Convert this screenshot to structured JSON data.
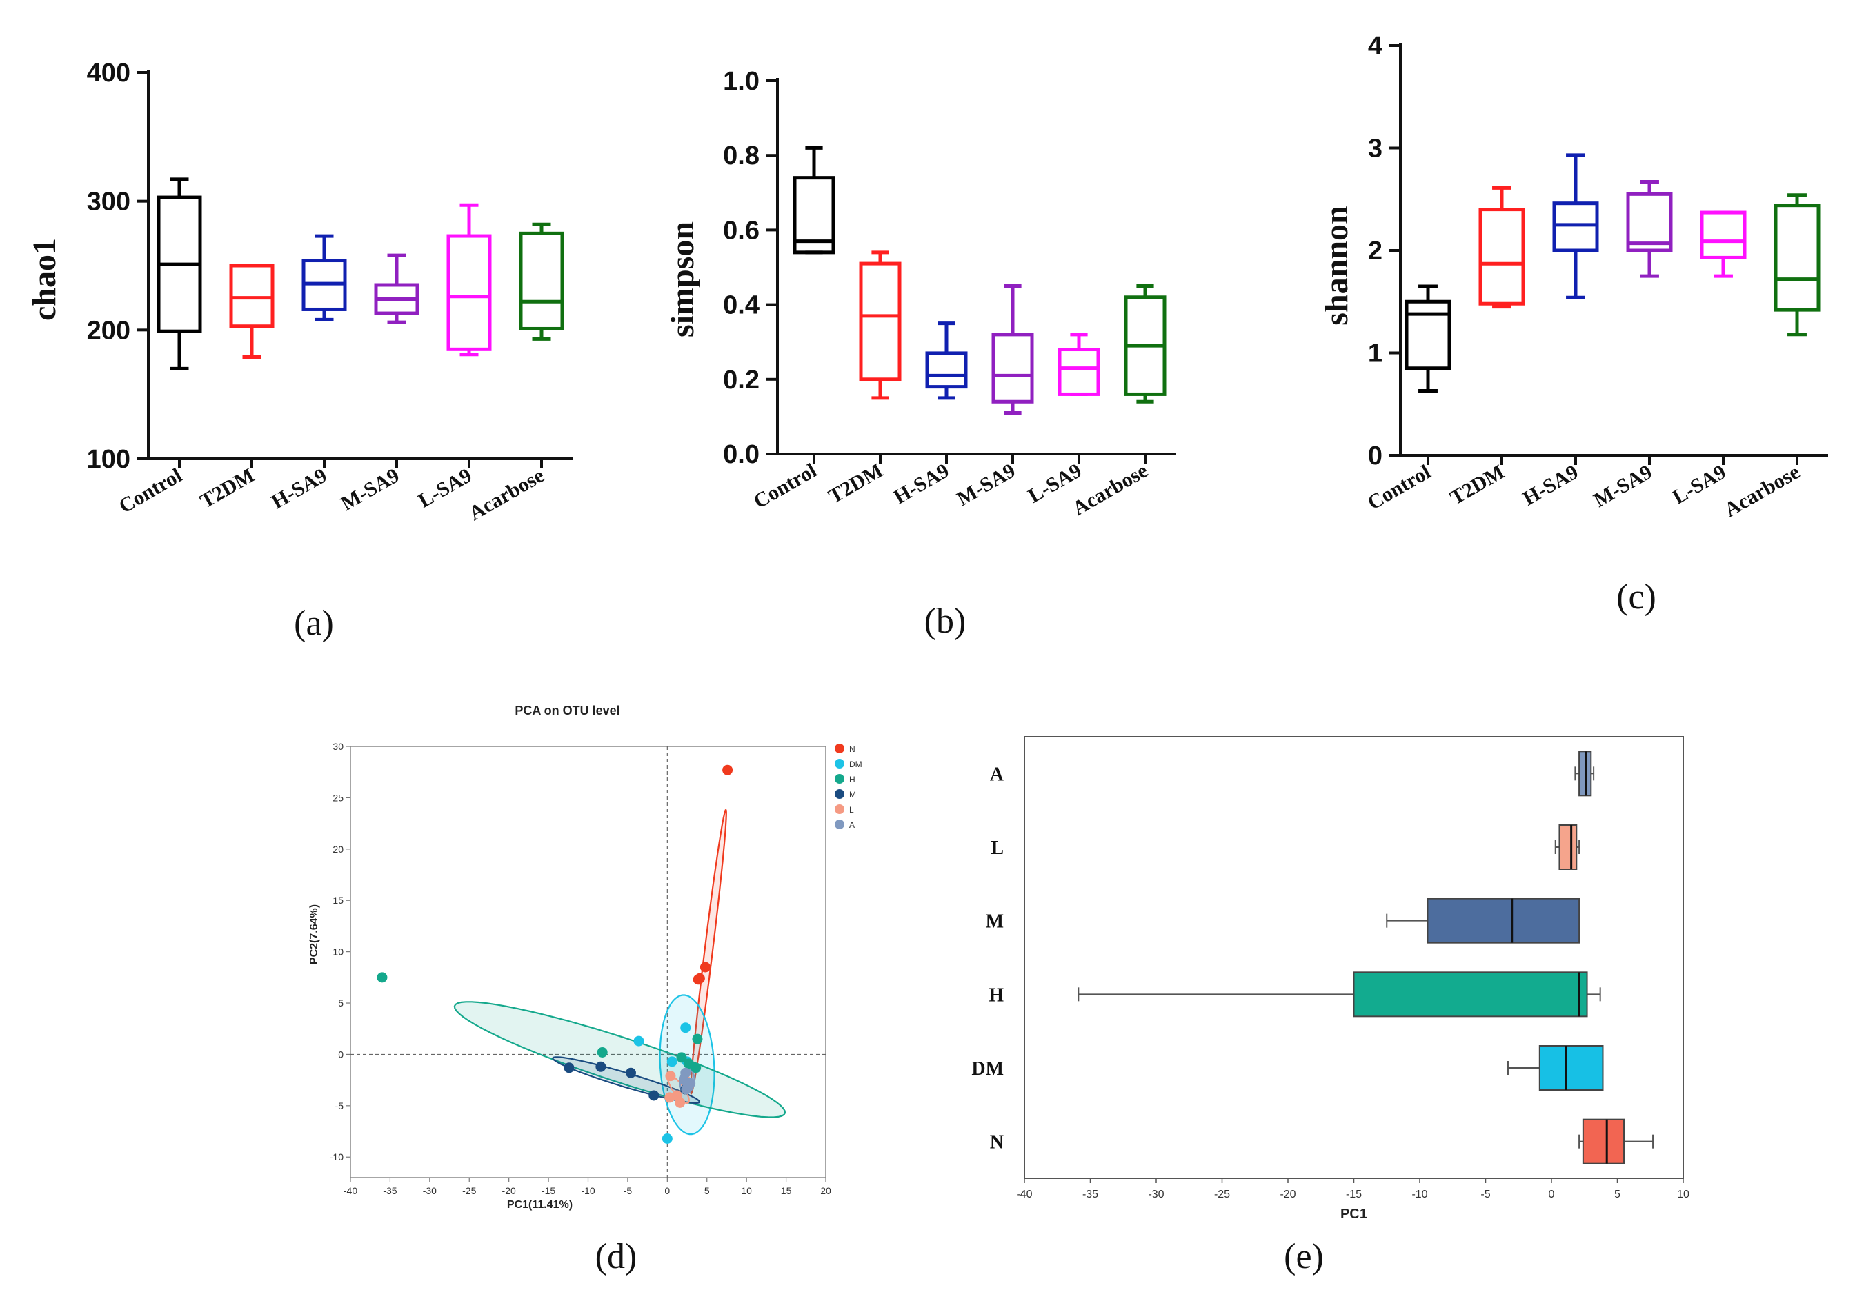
{
  "chart_data": [
    {
      "id": "a",
      "type": "box",
      "panel_label": "(a)",
      "ylabel": "chao1",
      "ylim": [
        100,
        400
      ],
      "yticks": [
        100,
        200,
        300,
        400
      ],
      "categories": [
        "Control",
        "T2DM",
        "H-SA9",
        "M-SA9",
        "L-SA9",
        "Acarbose"
      ],
      "colors": [
        "#000000",
        "#ff2020",
        "#1020b0",
        "#9020c0",
        "#ff10ff",
        "#107010"
      ],
      "boxes": [
        {
          "min": 170,
          "q1": 199,
          "median": 251,
          "q3": 303,
          "max": 317
        },
        {
          "min": 179,
          "q1": 203,
          "median": 225,
          "q3": 250,
          "max": 250
        },
        {
          "min": 208,
          "q1": 216,
          "median": 236,
          "q3": 254,
          "max": 273
        },
        {
          "min": 206,
          "q1": 213,
          "median": 224,
          "q3": 235,
          "max": 258
        },
        {
          "min": 181,
          "q1": 185,
          "median": 226,
          "q3": 273,
          "max": 297
        },
        {
          "min": 193,
          "q1": 201,
          "median": 222,
          "q3": 275,
          "max": 282
        }
      ]
    },
    {
      "id": "b",
      "type": "box",
      "panel_label": "(b)",
      "ylabel": "simpson",
      "ylim": [
        0.0,
        1.0
      ],
      "yticks": [
        0.0,
        0.2,
        0.4,
        0.6,
        0.8,
        1.0
      ],
      "ytick_labels": [
        "0.0",
        "0.2",
        "0.4",
        "0.6",
        "0.8",
        "1.0"
      ],
      "categories": [
        "Control",
        "T2DM",
        "H-SA9",
        "M-SA9",
        "L-SA9",
        "Acarbose"
      ],
      "colors": [
        "#000000",
        "#ff2020",
        "#1020b0",
        "#9020c0",
        "#ff10ff",
        "#107010"
      ],
      "boxes": [
        {
          "min": 0.54,
          "q1": 0.54,
          "median": 0.57,
          "q3": 0.74,
          "max": 0.82
        },
        {
          "min": 0.15,
          "q1": 0.2,
          "median": 0.37,
          "q3": 0.51,
          "max": 0.54
        },
        {
          "min": 0.15,
          "q1": 0.18,
          "median": 0.21,
          "q3": 0.27,
          "max": 0.35
        },
        {
          "min": 0.11,
          "q1": 0.14,
          "median": 0.21,
          "q3": 0.32,
          "max": 0.45
        },
        {
          "min": 0.16,
          "q1": 0.16,
          "median": 0.23,
          "q3": 0.28,
          "max": 0.32
        },
        {
          "min": 0.14,
          "q1": 0.16,
          "median": 0.29,
          "q3": 0.42,
          "max": 0.45
        }
      ]
    },
    {
      "id": "c",
      "type": "box",
      "panel_label": "(c)",
      "ylabel": "shannon",
      "ylim": [
        0,
        4
      ],
      "yticks": [
        0,
        1,
        2,
        3,
        4
      ],
      "categories": [
        "Control",
        "T2DM",
        "H-SA9",
        "M-SA9",
        "L-SA9",
        "Acarbose"
      ],
      "colors": [
        "#000000",
        "#ff2020",
        "#1020b0",
        "#9020c0",
        "#ff10ff",
        "#107010"
      ],
      "boxes": [
        {
          "min": 0.63,
          "q1": 0.85,
          "median": 1.38,
          "q3": 1.5,
          "max": 1.65
        },
        {
          "min": 1.45,
          "q1": 1.48,
          "median": 1.87,
          "q3": 2.4,
          "max": 2.61
        },
        {
          "min": 1.54,
          "q1": 2.0,
          "median": 2.25,
          "q3": 2.46,
          "max": 2.93
        },
        {
          "min": 1.75,
          "q1": 2.0,
          "median": 2.07,
          "q3": 2.55,
          "max": 2.67
        },
        {
          "min": 1.75,
          "q1": 1.93,
          "median": 2.09,
          "q3": 2.37,
          "max": 2.37
        },
        {
          "min": 1.18,
          "q1": 1.42,
          "median": 1.72,
          "q3": 2.44,
          "max": 2.54
        }
      ]
    },
    {
      "id": "d",
      "type": "scatter",
      "panel_label": "(d)",
      "title": "PCA on OTU level",
      "xlabel": "PC1(11.41%)",
      "ylabel": "PC2(7.64%)",
      "xlim": [
        -40,
        20
      ],
      "ylim": [
        -12,
        30
      ],
      "xticks": [
        -40,
        -35,
        -30,
        -25,
        -20,
        -15,
        -10,
        -5,
        0,
        5,
        10,
        15,
        20
      ],
      "yticks": [
        -10,
        -5,
        0,
        5,
        10,
        15,
        20,
        25,
        30
      ],
      "series": [
        {
          "name": "N",
          "color": "#f03a1e",
          "points": [
            [
              7.6,
              27.7
            ],
            [
              4.8,
              8.5
            ],
            [
              4.1,
              7.4
            ],
            [
              3.9,
              7.3
            ]
          ],
          "ellipse": {
            "cx": 5.2,
            "cy": 10.0,
            "rx": 14.0,
            "ry": 0.5,
            "angle": 81
          }
        },
        {
          "name": "DM",
          "color": "#1cc3e6",
          "points": [
            [
              2.3,
              2.6
            ],
            [
              -3.6,
              1.3
            ],
            [
              0.6,
              -0.7
            ],
            [
              0.0,
              -8.2
            ],
            [
              2.5,
              -0.7
            ]
          ],
          "ellipse": {
            "cx": 2.5,
            "cy": -1.0,
            "rx": 6.8,
            "ry": 3.4,
            "angle": 95
          }
        },
        {
          "name": "H",
          "color": "#14a88c",
          "points": [
            [
              -36.0,
              7.5
            ],
            [
              3.8,
              1.5
            ],
            [
              -8.2,
              0.2
            ],
            [
              1.8,
              -0.3
            ],
            [
              3.6,
              -1.3
            ],
            [
              2.7,
              -0.9
            ]
          ],
          "ellipse": {
            "cx": -6.0,
            "cy": -0.5,
            "rx": 21.5,
            "ry": 2.2,
            "angle": -14
          }
        },
        {
          "name": "M",
          "color": "#1a4b80",
          "points": [
            [
              -12.4,
              -1.3
            ],
            [
              -8.4,
              -1.2
            ],
            [
              -4.6,
              -1.8
            ],
            [
              -1.7,
              -4.0
            ],
            [
              2.3,
              -3.4
            ]
          ],
          "ellipse": {
            "cx": -5.2,
            "cy": -2.5,
            "rx": 9.5,
            "ry": 0.7,
            "angle": -13
          }
        },
        {
          "name": "L",
          "color": "#f59a83",
          "points": [
            [
              0.4,
              -2.1
            ],
            [
              1.2,
              -4.0
            ],
            [
              1.6,
              -4.7
            ],
            [
              0.3,
              -4.2
            ],
            [
              2.4,
              -2.6
            ]
          ],
          "ellipse": {
            "cx": 1.4,
            "cy": -3.4,
            "rx": 1.8,
            "ry": 0.6,
            "angle": -45
          }
        },
        {
          "name": "A",
          "color": "#8099c0",
          "points": [
            [
              2.1,
              -2.5
            ],
            [
              2.6,
              -3.0
            ],
            [
              2.4,
              -3.4
            ],
            [
              2.9,
              -2.8
            ],
            [
              2.3,
              -1.8
            ]
          ],
          "ellipse": {
            "cx": 2.5,
            "cy": -2.6,
            "rx": 1.2,
            "ry": 0.9,
            "angle": 80
          }
        }
      ]
    },
    {
      "id": "e",
      "type": "box",
      "orientation": "horizontal",
      "panel_label": "(e)",
      "xlabel": "PC1",
      "xlim": [
        -40,
        10
      ],
      "xticks": [
        -40,
        -35,
        -30,
        -25,
        -20,
        -15,
        -10,
        -5,
        0,
        5,
        10
      ],
      "categories": [
        "A",
        "L",
        "M",
        "H",
        "DM",
        "N"
      ],
      "colors": [
        "#7f98be",
        "#f5a48c",
        "#4d6d9e",
        "#12ab8f",
        "#17c0e5",
        "#f26552"
      ],
      "boxes": [
        {
          "min": 1.8,
          "q1": 2.1,
          "median": 2.6,
          "q3": 3.0,
          "max": 3.2
        },
        {
          "min": 0.3,
          "q1": 0.6,
          "median": 1.5,
          "q3": 1.9,
          "max": 2.1
        },
        {
          "min": -12.5,
          "q1": -9.4,
          "median": -3.0,
          "q3": 2.1,
          "max": 2.1
        },
        {
          "min": -35.9,
          "q1": -15.0,
          "median": 2.1,
          "q3": 2.7,
          "max": 3.7
        },
        {
          "min": -3.3,
          "q1": -0.9,
          "median": 1.1,
          "q3": 3.9,
          "max": 3.9
        },
        {
          "min": 2.1,
          "q1": 2.4,
          "median": 4.2,
          "q3": 5.5,
          "max": 7.7
        }
      ]
    }
  ]
}
